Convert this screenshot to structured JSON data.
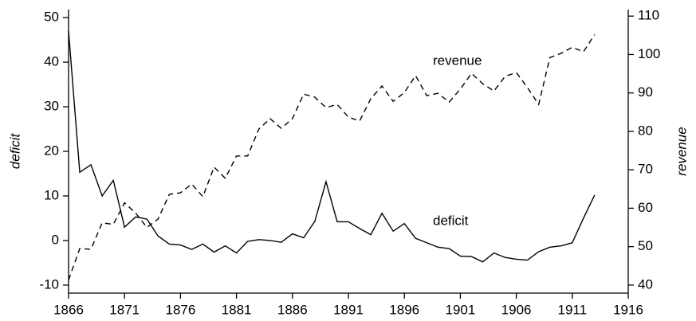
{
  "chart_data": {
    "type": "line",
    "x": [
      1866,
      1867,
      1868,
      1869,
      1870,
      1871,
      1872,
      1873,
      1874,
      1875,
      1876,
      1877,
      1878,
      1879,
      1880,
      1881,
      1882,
      1883,
      1884,
      1885,
      1886,
      1887,
      1888,
      1889,
      1890,
      1891,
      1892,
      1893,
      1894,
      1895,
      1896,
      1897,
      1898,
      1899,
      1900,
      1901,
      1902,
      1903,
      1904,
      1905,
      1906,
      1907,
      1908,
      1909,
      1910,
      1911,
      1912,
      1913
    ],
    "series": [
      {
        "name": "deficit",
        "color": "#000000",
        "dash": false,
        "values": [
          47,
          15.3,
          17,
          10,
          13.5,
          3,
          5.3,
          4.8,
          1,
          -0.8,
          -1,
          -2,
          -0.8,
          -2.6,
          -1.2,
          -2.8,
          -0.2,
          0.2,
          0,
          -0.4,
          1.5,
          0.6,
          4.3,
          13.2,
          4.2,
          4.2,
          2.7,
          1.3,
          6.1,
          2.1,
          3.8,
          0.5,
          -0.5,
          -1.5,
          -1.8,
          -3.5,
          -3.6,
          -4.8,
          -2.8,
          -3.8,
          -4.2,
          -4.4,
          -2.5,
          -1.5,
          -1.2,
          -0.5,
          5,
          10.2
        ]
      },
      {
        "name": "revenue",
        "color": "#000000",
        "dash": true,
        "axis": "y2",
        "values": [
          41.3,
          49.5,
          49.3,
          56.2,
          55.8,
          61.4,
          58.7,
          55,
          57.2,
          63.6,
          64,
          66.3,
          63,
          70.7,
          67.8,
          73.6,
          73.6,
          80.6,
          83.3,
          80.8,
          83.3,
          89.7,
          88.9,
          86.2,
          87,
          83.7,
          82.7,
          88.5,
          91.8,
          87.8,
          90.1,
          94.5,
          89.3,
          89.9,
          87.6,
          91,
          95.1,
          92.4,
          90.5,
          94.3,
          95.3,
          91.4,
          87,
          99.2,
          100.3,
          101.9,
          100.7,
          105.2
        ]
      }
    ],
    "ylabel": "deficit",
    "y2label": "revenue",
    "xlim": [
      1866,
      1916
    ],
    "xticks": [
      1866,
      1871,
      1876,
      1881,
      1886,
      1891,
      1896,
      1901,
      1906,
      1911,
      1916
    ],
    "ylim": [
      -11.8,
      51.8
    ],
    "yticks": [
      -10,
      0,
      10,
      20,
      30,
      40,
      50
    ],
    "y2lim": [
      37.9,
      111.7
    ],
    "y2ticks": [
      40,
      50,
      60,
      70,
      80,
      90,
      100,
      110
    ],
    "annotations": [
      "revenue",
      "deficit"
    ]
  }
}
